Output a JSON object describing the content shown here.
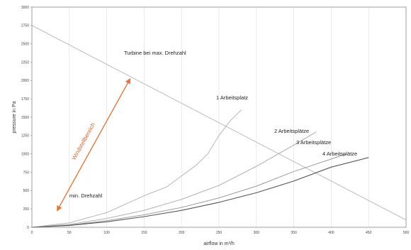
{
  "chart_data": {
    "type": "line",
    "xlabel": "airflow in m³/h",
    "ylabel": "pressure in Pa",
    "xlim": [
      0,
      500
    ],
    "ylim": [
      0,
      3000
    ],
    "x_ticks": [
      0,
      50,
      100,
      150,
      200,
      250,
      300,
      350,
      400,
      450,
      500
    ],
    "y_ticks": [
      0,
      250,
      500,
      750,
      1000,
      1250,
      1500,
      1750,
      2000,
      2250,
      2500,
      2750,
      3000
    ],
    "grid": "x-vertical",
    "series": [
      {
        "name": "Turbine bei max. Drehzahl",
        "color": "#b5b5b5",
        "x": [
          0,
          500
        ],
        "y": [
          2750,
          100
        ]
      },
      {
        "name": "1 Arbeitsplatz",
        "color": "#b0b0b0",
        "x": [
          0,
          50,
          100,
          150,
          180,
          200,
          220,
          235,
          250,
          265,
          280
        ],
        "y": [
          0,
          60,
          200,
          430,
          550,
          700,
          850,
          1000,
          1250,
          1450,
          1600
        ]
      },
      {
        "name": "2 Arbeitsplätze",
        "color": "#a8a8a8",
        "x": [
          0,
          50,
          100,
          150,
          200,
          250,
          300,
          350,
          380
        ],
        "y": [
          0,
          40,
          120,
          230,
          380,
          570,
          830,
          1120,
          1300
        ]
      },
      {
        "name": "3 Arbeitsplätze",
        "color": "#909090",
        "x": [
          0,
          50,
          100,
          150,
          200,
          250,
          300,
          350,
          400,
          420
        ],
        "y": [
          0,
          30,
          90,
          170,
          270,
          400,
          560,
          760,
          930,
          1000
        ]
      },
      {
        "name": "4 Arbeitsplätze",
        "color": "#555555",
        "x": [
          0,
          50,
          100,
          150,
          200,
          250,
          300,
          350,
          400,
          450
        ],
        "y": [
          0,
          25,
          75,
          145,
          230,
          340,
          470,
          630,
          820,
          950
        ]
      }
    ],
    "annotations": {
      "turbine_label": "Turbine bei max. Drehzahl",
      "label_1": "1 Arbeitsplatz",
      "label_2": "2 Arbeitsplätze",
      "label_3": "3 Arbeitsplätze",
      "label_4": "4 Arbeitsplätze",
      "min_label": "min. Drehzahl",
      "range_label": "Windstellbereich"
    },
    "range_arrow": {
      "color": "#e0793f",
      "from": [
        35,
        250
      ],
      "to": [
        130,
        2000
      ]
    }
  }
}
